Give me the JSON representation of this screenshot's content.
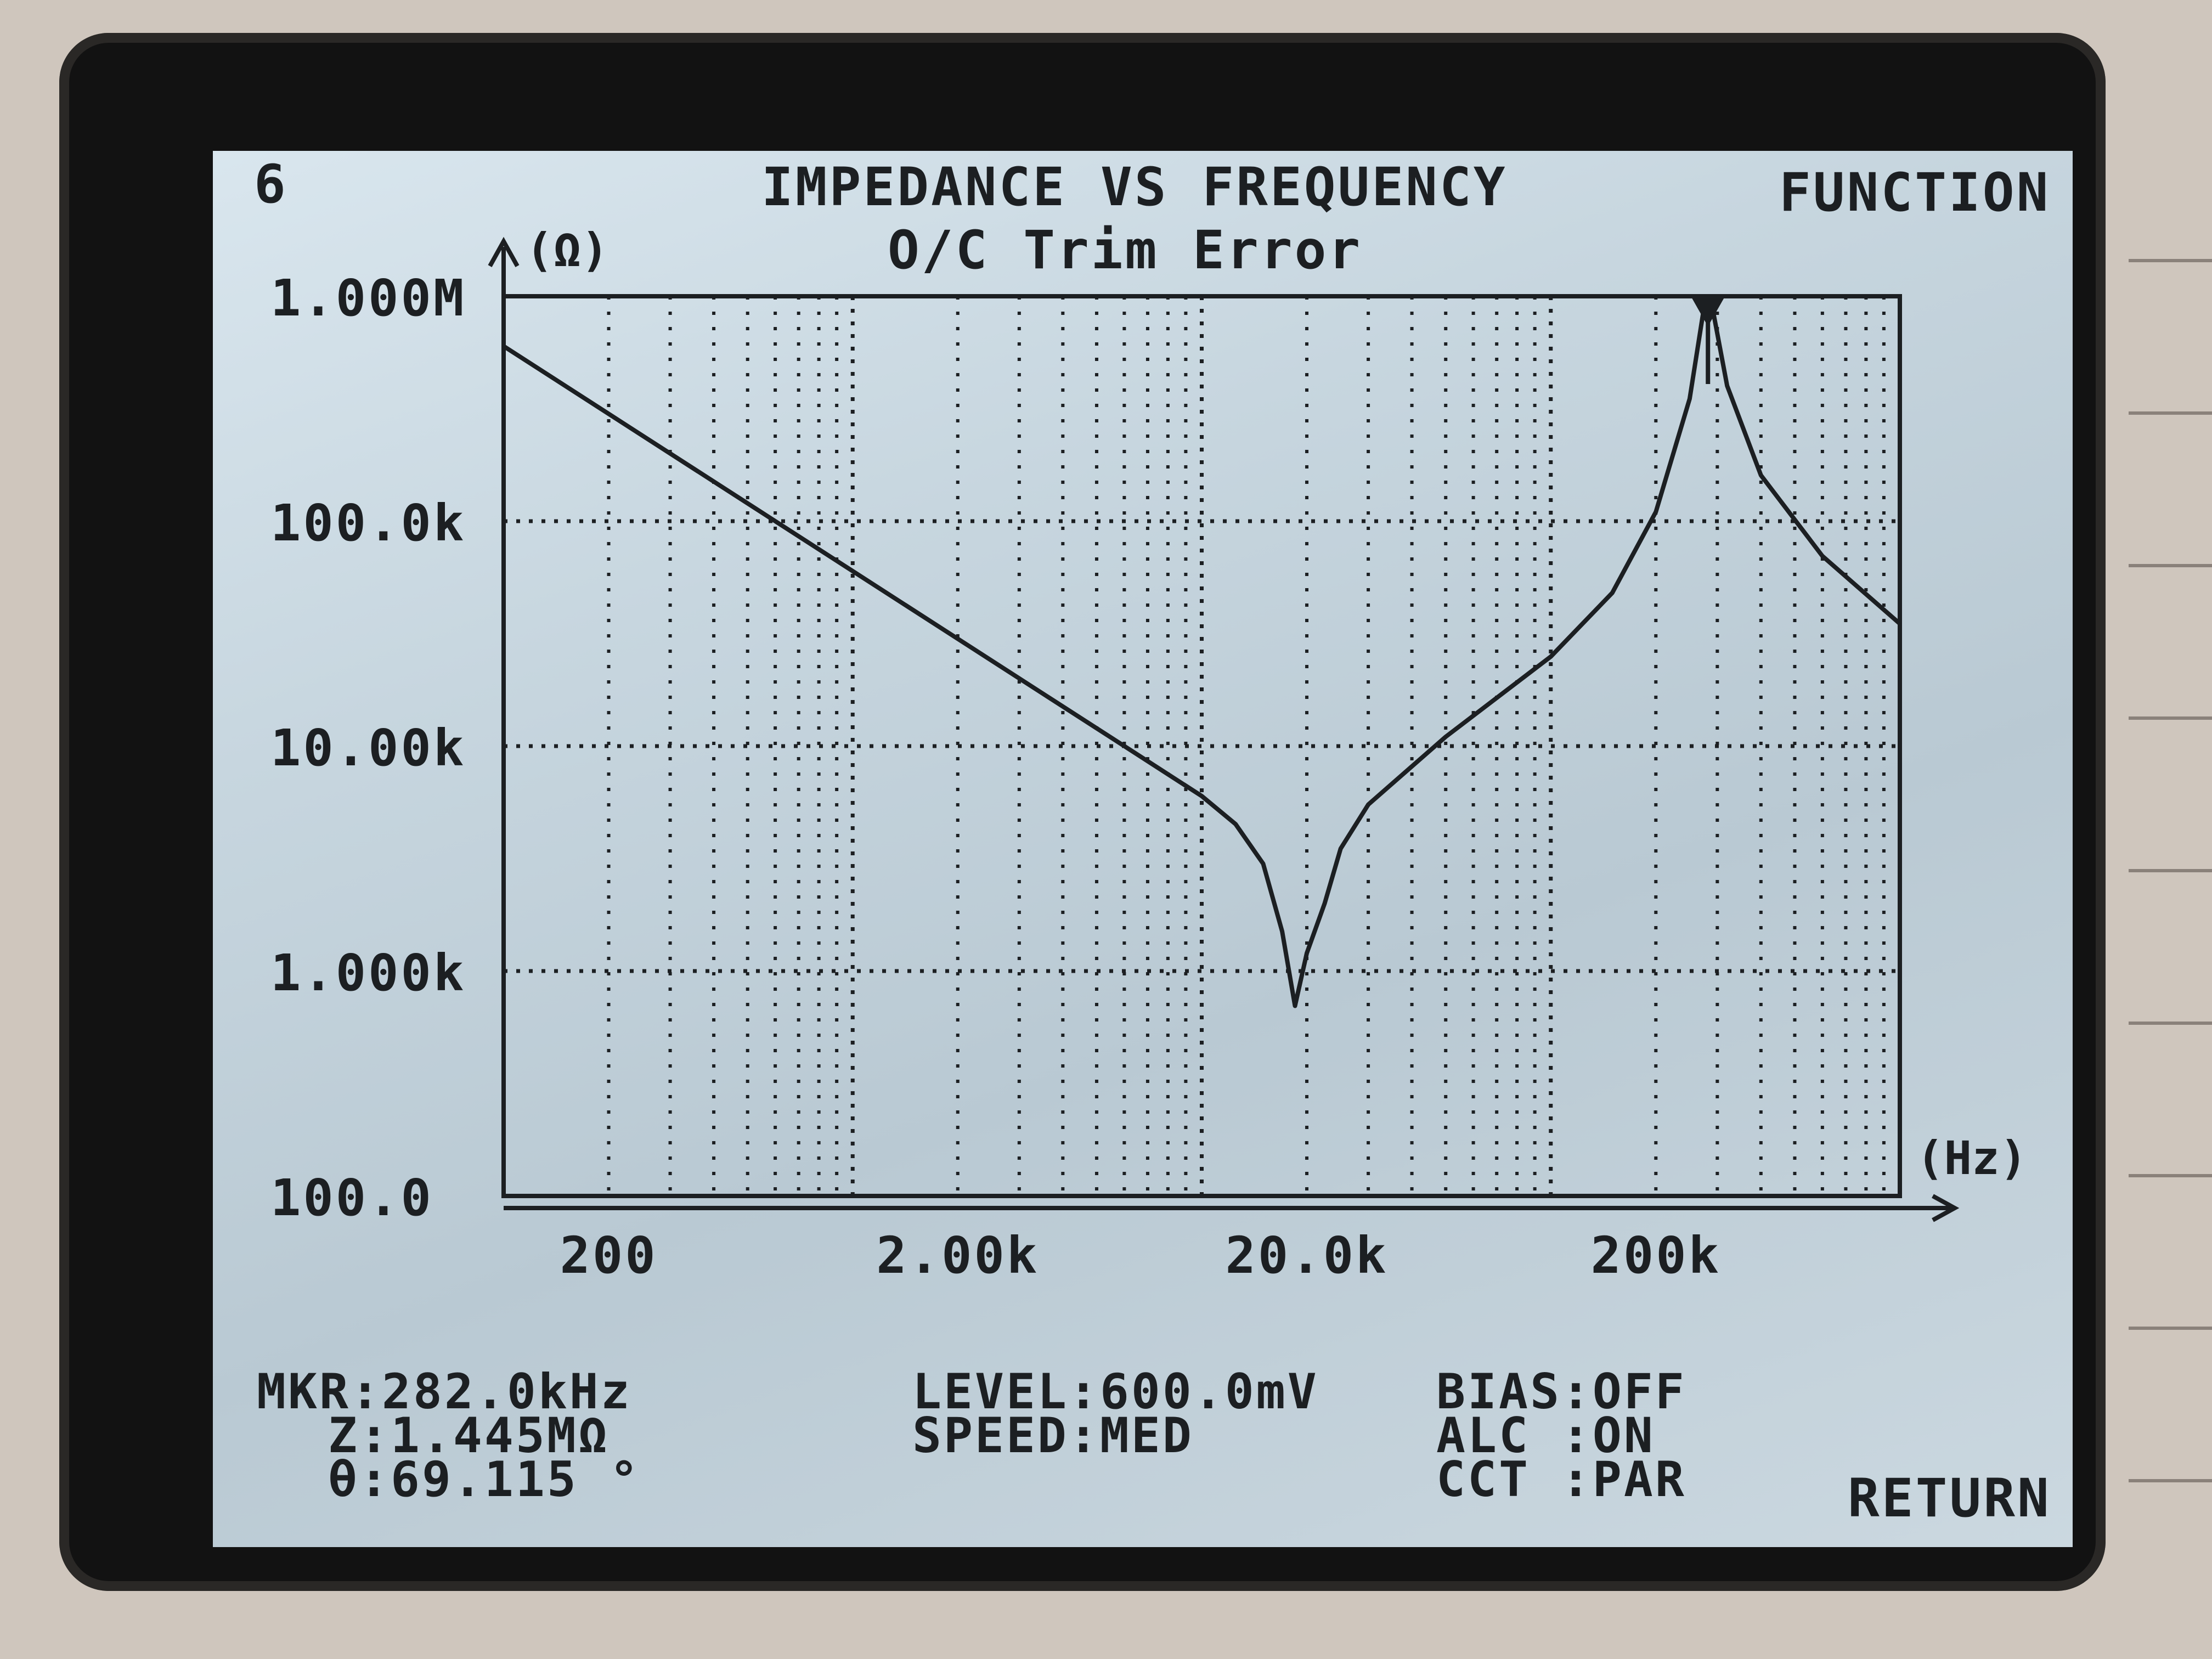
{
  "screen": {
    "page_number": "6",
    "title": "IMPEDANCE VS FREQUENCY",
    "subtitle": "O/C Trim Error",
    "softkey_function": "FUNCTION",
    "softkey_return": "RETURN"
  },
  "chart_data": {
    "type": "line",
    "xscale": "log",
    "yscale": "log",
    "xlabel": "(Hz)",
    "ylabel": "(Ω)",
    "x_tick_labels": [
      "200",
      "2.00k",
      "20.0k",
      "200k"
    ],
    "y_tick_labels": [
      "1.000M",
      "100.0k",
      "10.00k",
      "1.000k",
      "100.0"
    ],
    "xlim": [
      100,
      1000000
    ],
    "ylim": [
      100,
      1000000
    ],
    "grid": true,
    "series": [
      {
        "x": [
          100,
          200,
          500,
          1000,
          2000,
          5000,
          10000,
          12500,
          15000,
          17000,
          18500,
          20000,
          22500,
          25000,
          30000,
          50000,
          100000,
          150000,
          200000,
          250000,
          275000,
          282000,
          290000,
          320000,
          400000,
          600000,
          1000000
        ],
        "y": [
          600000,
          300000,
          120000,
          60000,
          30000,
          12000,
          6000,
          4500,
          3000,
          1500,
          700,
          1200,
          2000,
          3500,
          5500,
          11000,
          25000,
          48000,
          110000,
          350000,
          900000,
          1445000,
          900000,
          400000,
          160000,
          70000,
          35000
        ]
      }
    ],
    "marker": {
      "x": 282000,
      "y": 1445000
    }
  },
  "status": {
    "mkr": "MKR:282.0kHz",
    "z": "Z:1.445MΩ",
    "theta": "θ:69.115 °",
    "level": "LEVEL:600.0mV",
    "speed": "SPEED:MED",
    "bias": "BIAS:OFF",
    "alc": "ALC :ON",
    "cct": "CCT :PAR"
  }
}
